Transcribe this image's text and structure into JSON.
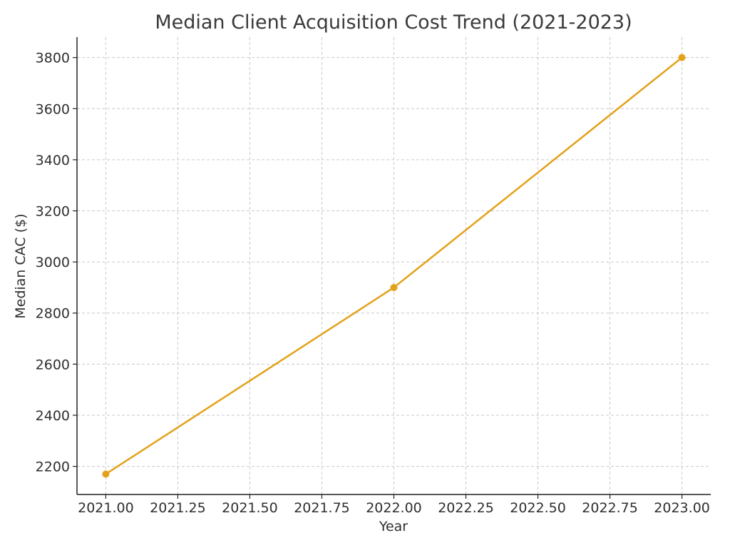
{
  "chart_data": {
    "type": "line",
    "title": "Median Client Acquisition Cost Trend (2021-2023)",
    "xlabel": "Year",
    "ylabel": "Median CAC ($)",
    "x": [
      2021,
      2022,
      2023
    ],
    "series": [
      {
        "values": [
          2170,
          2900,
          3800
        ],
        "color": "#e3a21a",
        "marker": "circle"
      }
    ],
    "xlim": [
      2020.9,
      2023.1
    ],
    "ylim": [
      2090,
      3880
    ],
    "xticks": [
      2021.0,
      2021.25,
      2021.5,
      2021.75,
      2022.0,
      2022.25,
      2022.5,
      2022.75,
      2023.0
    ],
    "xtick_labels": [
      "2021.00",
      "2021.25",
      "2021.50",
      "2021.75",
      "2022.00",
      "2022.25",
      "2022.50",
      "2022.75",
      "2023.00"
    ],
    "yticks": [
      2200,
      2400,
      2600,
      2800,
      3000,
      3200,
      3400,
      3600,
      3800
    ],
    "ytick_labels": [
      "2200",
      "2400",
      "2600",
      "2800",
      "3000",
      "3200",
      "3400",
      "3600",
      "3800"
    ],
    "grid": true,
    "legend": false
  }
}
